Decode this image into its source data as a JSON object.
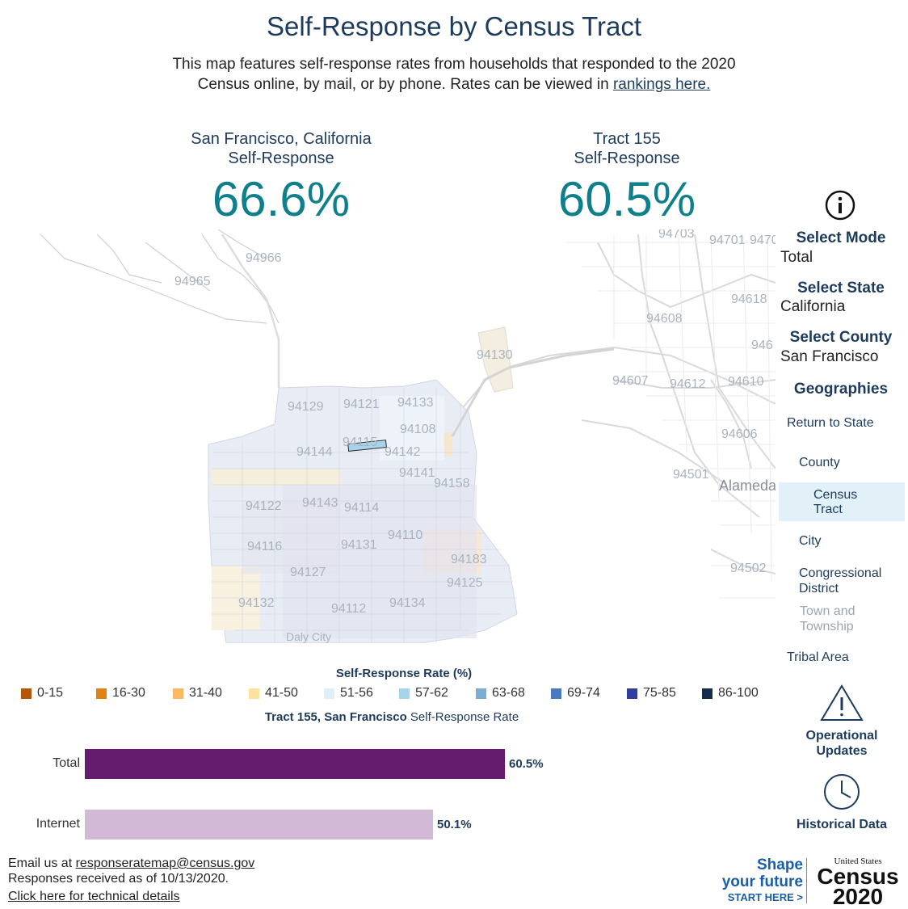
{
  "header": {
    "title": "Self-Response by Census Tract",
    "intro_line1": "This map features self-response rates from households that responded to the 2020",
    "intro_line2": "Census online, by mail, or by phone. Rates can be viewed in",
    "rankings_link": "rankings here."
  },
  "stats": {
    "left": {
      "line1": "San Francisco, California",
      "line2": "Self-Response",
      "value": "66.6%"
    },
    "right": {
      "line1": "Tract 155",
      "line2": "Self-Response",
      "value": "60.5%"
    }
  },
  "map": {
    "labels": [
      "94965",
      "94966",
      "94129",
      "94121",
      "94133",
      "94108",
      "94130",
      "94115",
      "94144",
      "94142",
      "94141",
      "94158",
      "94122",
      "94143",
      "94114",
      "94116",
      "94131",
      "94110",
      "94183",
      "94127",
      "94125",
      "94132",
      "94112",
      "94134",
      "Daly City",
      "94703",
      "94701",
      "9470",
      "94618",
      "94608",
      "946",
      "94607",
      "94612",
      "94610",
      "94606",
      "94501",
      "Alameda",
      "94502"
    ],
    "colors": {
      "land_sf": "#e9eef6",
      "water": "#ffffff",
      "roads": "#d6d6d6",
      "selected_tract": "#a9d3ea"
    }
  },
  "sidebar": {
    "mode_label": "Select Mode",
    "mode_value": "Total",
    "state_label": "Select State",
    "state_value": "California",
    "county_label": "Select County",
    "county_value": "San Francisco",
    "geo_label": "Geographies",
    "geo_items": [
      "Return to State",
      "County",
      "Census Tract",
      "City",
      "Congressional District",
      "Town and Township",
      "Tribal Area"
    ],
    "geo_selected": "Census Tract",
    "operational": "Operational Updates",
    "historical": "Historical Data",
    "info_icon": "info-icon",
    "warning_icon": "warning-icon",
    "clock_icon": "clock-icon"
  },
  "legend": {
    "title": "Self-Response Rate (%)",
    "items": [
      {
        "label": "0-15",
        "color": "#b35806"
      },
      {
        "label": "16-30",
        "color": "#e08214"
      },
      {
        "label": "31-40",
        "color": "#fdb863"
      },
      {
        "label": "41-50",
        "color": "#fee0a0"
      },
      {
        "label": "51-56",
        "color": "#deeff7"
      },
      {
        "label": "57-62",
        "color": "#a6d4ea"
      },
      {
        "label": "63-68",
        "color": "#7aafd3"
      },
      {
        "label": "69-74",
        "color": "#4a79c0"
      },
      {
        "label": "75-85",
        "color": "#2f3f9b"
      },
      {
        "label": "86-100",
        "color": "#142c4e"
      }
    ]
  },
  "chart_data": {
    "type": "bar",
    "title_bold": "Tract 155, San Francisco",
    "title_rest": " Self-Response Rate",
    "categories": [
      "Total",
      "Internet"
    ],
    "values": [
      60.5,
      50.1
    ],
    "value_labels": [
      "60.5%",
      "50.1%"
    ],
    "colors": [
      "#661c6e",
      "#d2bad6"
    ],
    "xlim": [
      0,
      100
    ]
  },
  "footer": {
    "email_prefix": "Email us at",
    "email": "responseratemap@census.gov",
    "received": "Responses received as of 10/13/2020.",
    "tech": "Click here for technical details"
  },
  "brand": {
    "shape": "Shape",
    "future": "your future",
    "start": "START HERE >",
    "us": "United States",
    "census": "Census",
    "year": "2020"
  }
}
